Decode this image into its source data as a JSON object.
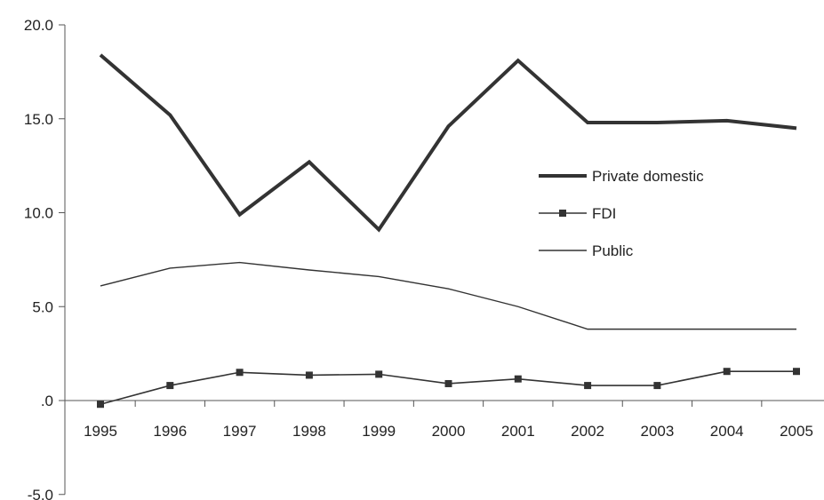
{
  "chart_data": {
    "type": "line",
    "categories": [
      "1995",
      "1996",
      "1997",
      "1998",
      "1999",
      "2000",
      "2001",
      "2002",
      "2003",
      "2004",
      "2005"
    ],
    "series": [
      {
        "name": "Private domestic",
        "values": [
          18.4,
          15.2,
          9.9,
          12.7,
          9.1,
          14.6,
          18.1,
          14.8,
          14.8,
          14.9,
          14.5
        ],
        "color": "#333333",
        "style": "thick"
      },
      {
        "name": "FDI",
        "values": [
          -0.2,
          0.8,
          1.5,
          1.35,
          1.4,
          0.9,
          1.15,
          0.8,
          0.8,
          1.55,
          1.55
        ],
        "color": "#333333",
        "style": "square-markers"
      },
      {
        "name": "Public",
        "values": [
          6.1,
          7.05,
          7.35,
          6.95,
          6.6,
          5.95,
          5.0,
          3.8,
          3.8,
          3.8,
          3.8
        ],
        "color": "#333333",
        "style": "thin"
      }
    ],
    "yticks": [
      -5.0,
      0.0,
      5.0,
      10.0,
      15.0,
      20.0
    ],
    "ytick_labels": [
      "-5.0",
      ".0",
      "5.0",
      "10.0",
      "15.0",
      "20.0"
    ],
    "ylim": [
      -5.0,
      20.0
    ],
    "grid": false,
    "legend_position": "right",
    "title": "",
    "xlabel": "",
    "ylabel": ""
  }
}
